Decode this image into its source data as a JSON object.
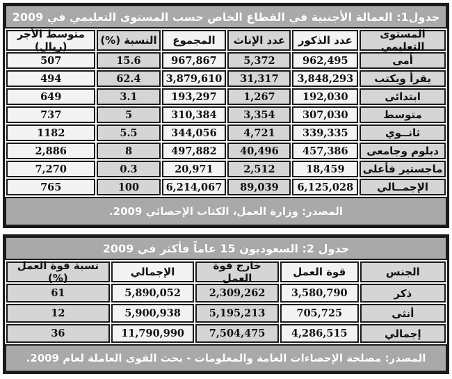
{
  "colors": {
    "bar_bg": "#a9a9a9",
    "bar_text": "#ffffff",
    "cell_gray": "#d5d5d5",
    "cell_light": "#f3f3f3",
    "border": "#1a1a1a",
    "data_text": "#111111"
  },
  "table1": {
    "title": "جدول1: العمالة الأجنبية في القطاع الخاص حسب المستوى التعليمي في 2009",
    "columns": [
      "المستوى التعليمي",
      "عدد الذكور",
      "عدد الإناث",
      "المجموع",
      "النسبة (%)",
      "متوسط الأجر (ريال)"
    ],
    "rows": [
      [
        "أمى",
        "962,495",
        "5,372",
        "967,867",
        "15.6",
        "507"
      ],
      [
        "يقرأ ويكتب",
        "3,848,293",
        "31,317",
        "3,879,610",
        "62.4",
        "494"
      ],
      [
        "ابتدائى",
        "192,030",
        "1,267",
        "193,297",
        "3.1",
        "649"
      ],
      [
        "متوسط",
        "307,030",
        "3,354",
        "310,384",
        "5",
        "737"
      ],
      [
        "ثانــوي",
        "339,335",
        "4,721",
        "344,056",
        "5.5",
        "1182"
      ],
      [
        "دبلوم وجامعى",
        "457,386",
        "40,496",
        "497,882",
        "8",
        "2,886"
      ],
      [
        "ماجستير فأعلى",
        "18,459",
        "2,512",
        "20,971",
        "0.3",
        "7,270"
      ],
      [
        "الإجمــالي",
        "6,125,028",
        "89,039",
        "6,214,067",
        "100",
        "765"
      ]
    ],
    "source": "المصدر: وزارة العمل، الكتاب الإحصائي 2009."
  },
  "table2": {
    "title": "جدول 2: السعوديون 15 عاماً فأكثر في 2009",
    "columns": [
      "الجنس",
      "قوة العمل",
      "خارج قوة العمل",
      "الإجمالي",
      "نسبة قوة العمل (%)"
    ],
    "rows": [
      [
        "ذكر",
        "3,580,790",
        "2,309,262",
        "5,890,052",
        "61"
      ],
      [
        "أنثى",
        "705,725",
        "5,195,213",
        "5,900,938",
        "12"
      ],
      [
        "إجمالي",
        "4,286,515",
        "7,504,475",
        "11,790,990",
        "36"
      ]
    ],
    "source": "المصدر: مصلحة الإحصاءات العامة والمعلومات - بحث القوى العاملة لعام 2009."
  }
}
